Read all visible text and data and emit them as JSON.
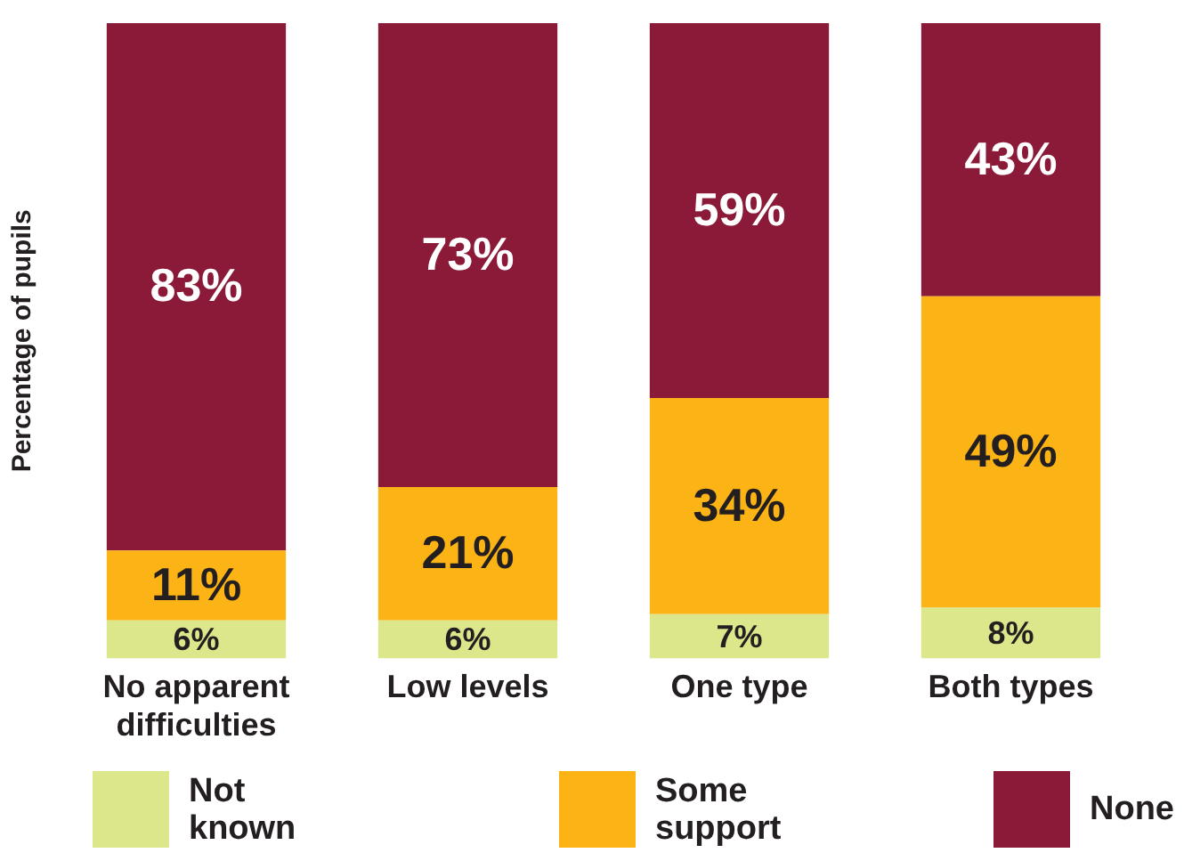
{
  "chart_data": {
    "type": "bar",
    "stacked": true,
    "ylabel": "Percentage of pupils",
    "categories": [
      "No apparent difficulties",
      "Low levels",
      "One type",
      "Both types"
    ],
    "series": [
      {
        "name": "Not known",
        "color": "#dce68a",
        "values": [
          6,
          6,
          7,
          8
        ],
        "value_labels": [
          "6%",
          "6%",
          "7%",
          "8%"
        ]
      },
      {
        "name": "Some support",
        "color": "#fbb316",
        "values": [
          11,
          21,
          34,
          49
        ],
        "value_labels": [
          "11%",
          "21%",
          "34%",
          "49%"
        ]
      },
      {
        "name": "None",
        "color": "#8b1a38",
        "values": [
          83,
          73,
          59,
          43
        ],
        "value_labels": [
          "83%",
          "73%",
          "59%",
          "43%"
        ]
      }
    ],
    "ylim": [
      0,
      100
    ],
    "tick_labels": "x",
    "grid": false,
    "legend": "bottom"
  }
}
